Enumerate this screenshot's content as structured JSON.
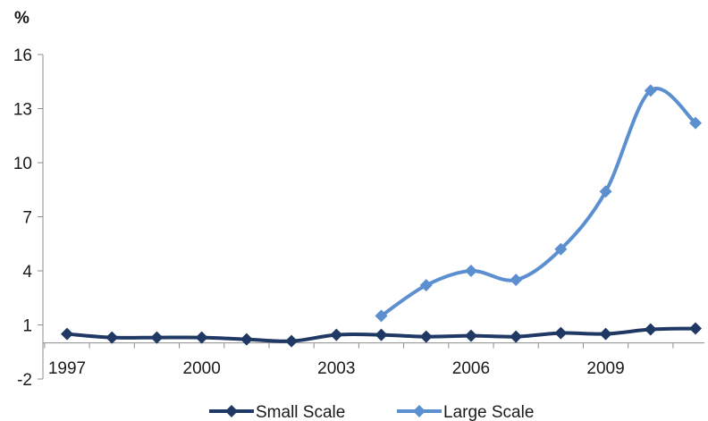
{
  "chart_data": {
    "type": "line",
    "title": "",
    "xlabel": "",
    "ylabel": "%",
    "ylim": [
      -2,
      16
    ],
    "xlim": [
      1997,
      2011
    ],
    "yticks": [
      -2,
      1,
      4,
      7,
      10,
      13,
      16
    ],
    "yticklabels": [
      "-2",
      "1",
      "4",
      "7",
      "10",
      "13",
      "16"
    ],
    "xticks": [
      1997,
      2000,
      2003,
      2006,
      2009
    ],
    "xticklabels": [
      "1997",
      "2000",
      "2003",
      "2006",
      "2009"
    ],
    "grid": false,
    "smooth": true,
    "legend_position": "bottom",
    "series": [
      {
        "name": "Small Scale",
        "color": "#1f3864",
        "marker": "diamond",
        "x": [
          1997,
          1998,
          1999,
          2000,
          2001,
          2002,
          2003,
          2004,
          2005,
          2006,
          2007,
          2008,
          2009,
          2010,
          2011
        ],
        "y": [
          0.5,
          0.3,
          0.3,
          0.3,
          0.2,
          0.1,
          0.45,
          0.45,
          0.35,
          0.4,
          0.35,
          0.55,
          0.5,
          0.75,
          0.8
        ]
      },
      {
        "name": "Large Scale",
        "color": "#5b8fd0",
        "marker": "diamond",
        "x": [
          2004,
          2005,
          2006,
          2007,
          2008,
          2009,
          2010,
          2011
        ],
        "y": [
          1.5,
          3.2,
          4.0,
          3.5,
          5.2,
          8.4,
          14.0,
          12.2
        ]
      }
    ]
  }
}
